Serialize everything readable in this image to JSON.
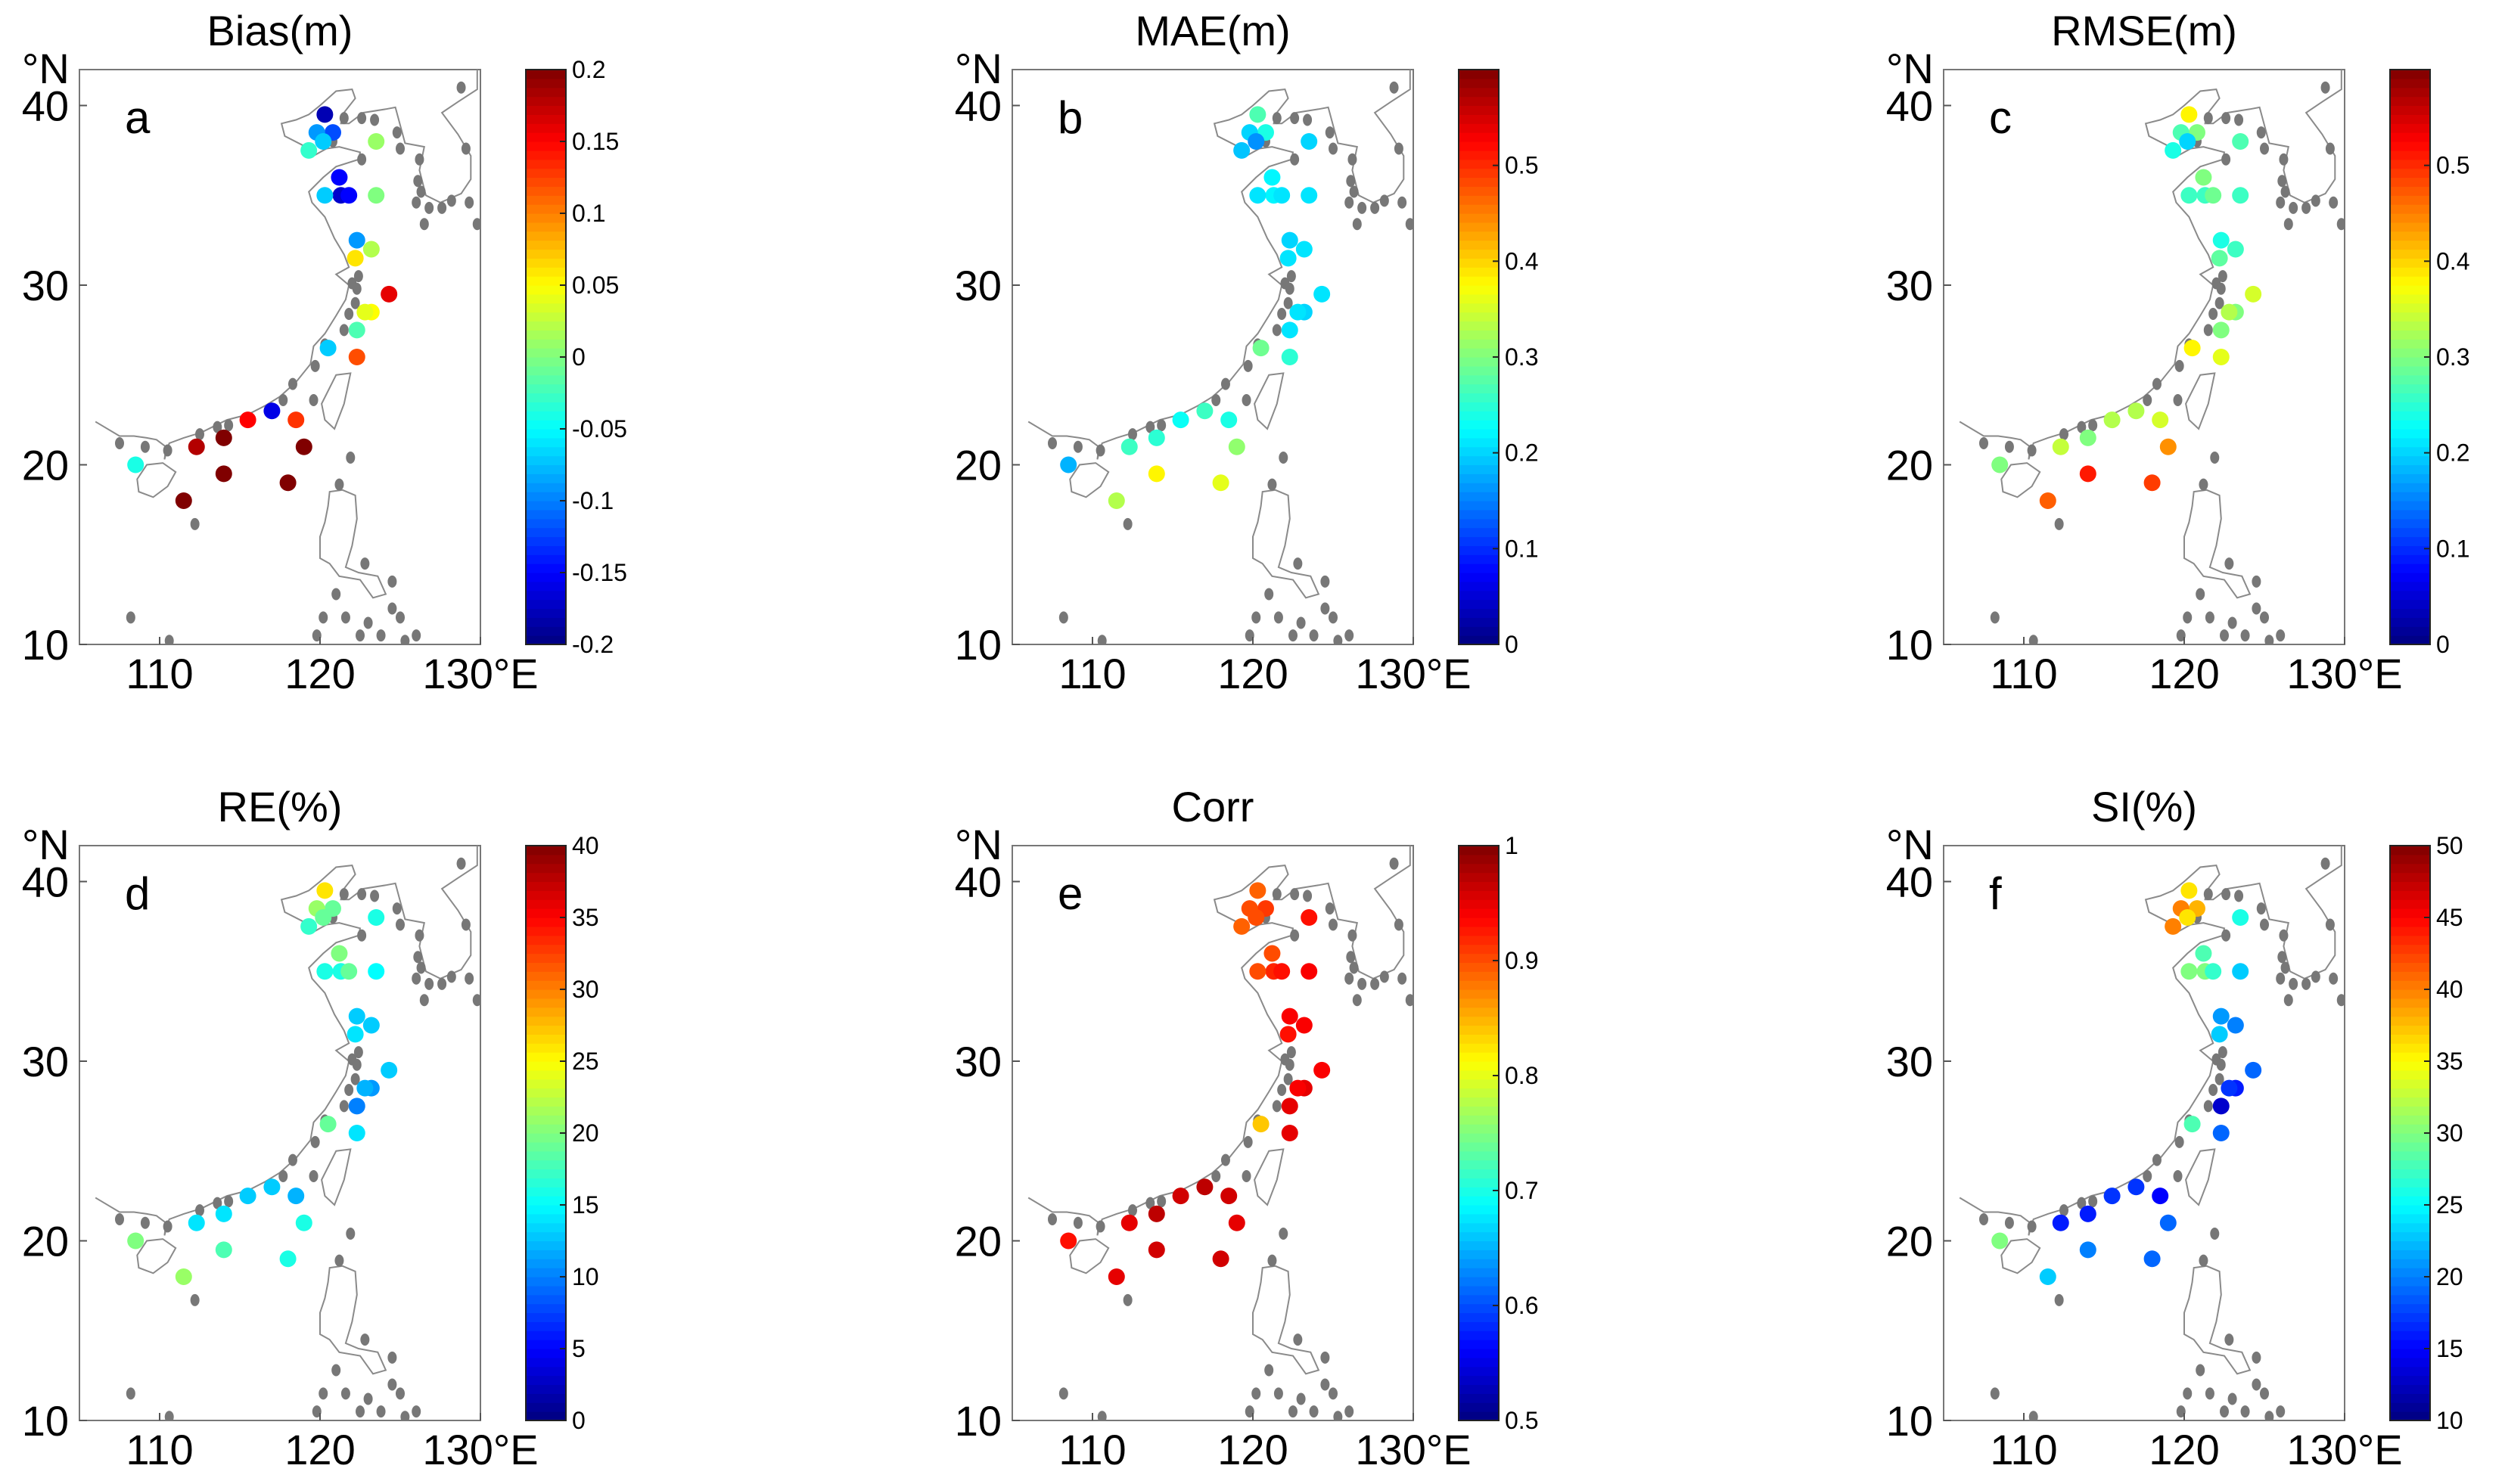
{
  "figure": {
    "lat_unit_label": "°N",
    "lon_unit_label": "°E"
  },
  "chart_data": [
    {
      "type": "scatter",
      "panel": "a",
      "title": "Bias(m)",
      "xlim": [
        105,
        130
      ],
      "ylim": [
        10,
        42
      ],
      "x_ticks": [
        110,
        120,
        130
      ],
      "y_ticks": [
        10,
        20,
        30,
        40
      ],
      "colorbar": {
        "min": -0.2,
        "max": 0.2,
        "ticks": [
          "0.2",
          "0.15",
          "0.1",
          "0.05",
          "0",
          "-0.05",
          "-0.1",
          "-0.15",
          "-0.2"
        ]
      },
      "x": [
        120.3,
        120.8,
        119.8,
        120.2,
        121.2,
        119.3,
        123.5,
        121.3,
        120.3,
        121.8,
        123.5,
        122.3,
        123.2,
        122.2,
        124.3,
        123.2,
        122.8,
        122.3,
        120.5,
        122.3,
        117.0,
        118.5,
        115.5,
        114.0,
        112.3,
        108.5,
        114.0,
        111.5,
        118.0,
        119.0
      ],
      "y": [
        39.5,
        38.5,
        38.5,
        38.0,
        36.0,
        37.5,
        38.0,
        35.0,
        35.0,
        35.0,
        35.0,
        32.5,
        32.0,
        31.5,
        29.5,
        28.5,
        28.5,
        27.5,
        26.5,
        26.0,
        23.0,
        22.5,
        22.5,
        21.5,
        21.0,
        20.0,
        19.5,
        18.0,
        19.0,
        21.0
      ],
      "values": [
        -0.18,
        -0.12,
        -0.09,
        -0.07,
        -0.15,
        -0.03,
        0.01,
        -0.17,
        -0.07,
        -0.15,
        -0.0,
        -0.09,
        0.02,
        0.06,
        0.16,
        0.05,
        0.04,
        -0.02,
        -0.07,
        0.12,
        -0.16,
        0.13,
        0.15,
        0.2,
        0.18,
        -0.04,
        0.2,
        0.2,
        0.2,
        0.2
      ]
    },
    {
      "type": "scatter",
      "panel": "b",
      "title": "MAE(m)",
      "xlim": [
        105,
        130
      ],
      "ylim": [
        10,
        42
      ],
      "x_ticks": [
        110,
        120,
        130
      ],
      "y_ticks": [
        10,
        20,
        30,
        40
      ],
      "colorbar": {
        "min": 0,
        "max": 0.6,
        "ticks": [
          "0.5",
          "0.4",
          "0.3",
          "0.2",
          "0.1",
          "0"
        ]
      },
      "x": [
        120.3,
        120.8,
        119.8,
        120.2,
        121.2,
        119.3,
        123.5,
        121.3,
        120.3,
        121.8,
        123.5,
        122.3,
        123.2,
        122.2,
        124.3,
        123.2,
        122.8,
        122.3,
        120.5,
        122.3,
        117.0,
        118.5,
        115.5,
        114.0,
        112.3,
        108.5,
        114.0,
        111.5,
        118.0,
        119.0
      ],
      "y": [
        39.5,
        38.5,
        38.5,
        38.0,
        36.0,
        37.5,
        38.0,
        35.0,
        35.0,
        35.0,
        35.0,
        32.5,
        32.0,
        31.5,
        29.5,
        28.5,
        28.5,
        27.5,
        26.5,
        26.0,
        23.0,
        22.5,
        22.5,
        21.5,
        21.0,
        20.0,
        19.5,
        18.0,
        19.0,
        21.0
      ],
      "values": [
        0.27,
        0.24,
        0.2,
        0.16,
        0.22,
        0.19,
        0.2,
        0.22,
        0.21,
        0.21,
        0.21,
        0.2,
        0.21,
        0.21,
        0.21,
        0.2,
        0.21,
        0.21,
        0.29,
        0.25,
        0.26,
        0.24,
        0.23,
        0.25,
        0.26,
        0.18,
        0.38,
        0.33,
        0.36,
        0.31
      ]
    },
    {
      "type": "scatter",
      "panel": "c",
      "title": "RMSE(m)",
      "xlim": [
        105,
        130
      ],
      "ylim": [
        10,
        42
      ],
      "x_ticks": [
        110,
        120,
        130
      ],
      "y_ticks": [
        10,
        20,
        30,
        40
      ],
      "colorbar": {
        "min": 0,
        "max": 0.6,
        "ticks": [
          "0.5",
          "0.4",
          "0.3",
          "0.2",
          "0.1",
          "0"
        ]
      },
      "x": [
        120.3,
        120.8,
        119.8,
        120.2,
        121.2,
        119.3,
        123.5,
        121.3,
        120.3,
        121.8,
        123.5,
        122.3,
        123.2,
        122.2,
        124.3,
        123.2,
        122.8,
        122.3,
        120.5,
        122.3,
        117.0,
        118.5,
        115.5,
        114.0,
        112.3,
        108.5,
        114.0,
        111.5,
        118.0,
        119.0
      ],
      "y": [
        39.5,
        38.5,
        38.5,
        38.0,
        36.0,
        37.5,
        38.0,
        35.0,
        35.0,
        35.0,
        35.0,
        32.5,
        32.0,
        31.5,
        29.5,
        28.5,
        28.5,
        27.5,
        26.5,
        26.0,
        23.0,
        22.5,
        22.5,
        21.5,
        21.0,
        20.0,
        19.5,
        18.0,
        19.0,
        21.0
      ],
      "values": [
        0.38,
        0.3,
        0.27,
        0.2,
        0.3,
        0.24,
        0.27,
        0.26,
        0.26,
        0.29,
        0.26,
        0.24,
        0.26,
        0.28,
        0.35,
        0.3,
        0.33,
        0.3,
        0.38,
        0.36,
        0.33,
        0.35,
        0.33,
        0.3,
        0.34,
        0.3,
        0.51,
        0.47,
        0.49,
        0.44
      ]
    },
    {
      "type": "scatter",
      "panel": "d",
      "title": "RE(%)",
      "xlim": [
        105,
        130
      ],
      "ylim": [
        10,
        42
      ],
      "x_ticks": [
        110,
        120,
        130
      ],
      "y_ticks": [
        10,
        20,
        30,
        40
      ],
      "colorbar": {
        "min": 0,
        "max": 40,
        "ticks": [
          "40",
          "35",
          "30",
          "25",
          "20",
          "15",
          "10",
          "5",
          "0"
        ]
      },
      "x": [
        120.3,
        120.8,
        119.8,
        120.2,
        121.2,
        119.3,
        123.5,
        121.3,
        120.3,
        121.8,
        123.5,
        122.3,
        123.2,
        122.2,
        124.3,
        123.2,
        122.8,
        122.3,
        120.5,
        122.3,
        117.0,
        118.5,
        115.5,
        114.0,
        112.3,
        108.5,
        114.0,
        111.5,
        118.0,
        119.0
      ],
      "y": [
        39.5,
        38.5,
        38.5,
        38.0,
        36.0,
        37.5,
        38.0,
        35.0,
        35.0,
        35.0,
        35.0,
        32.5,
        32.0,
        31.5,
        29.5,
        28.5,
        28.5,
        27.5,
        26.5,
        26.0,
        23.0,
        22.5,
        22.5,
        21.5,
        21.0,
        20.0,
        19.5,
        18.0,
        19.0,
        21.0
      ],
      "values": [
        26,
        19,
        21,
        19,
        20,
        17,
        16,
        16,
        16,
        19,
        15,
        13,
        13,
        14,
        13,
        11,
        12,
        10,
        19,
        14,
        13,
        12,
        13,
        14,
        14,
        20,
        18,
        21,
        16,
        16
      ]
    },
    {
      "type": "scatter",
      "panel": "e",
      "title": "Corr",
      "xlim": [
        105,
        130
      ],
      "ylim": [
        10,
        42
      ],
      "x_ticks": [
        110,
        120,
        130
      ],
      "y_ticks": [
        10,
        20,
        30,
        40
      ],
      "colorbar": {
        "min": 0.5,
        "max": 1,
        "ticks": [
          "1",
          "0.9",
          "0.8",
          "0.7",
          "0.6",
          "0.5"
        ]
      },
      "x": [
        120.3,
        120.8,
        119.8,
        120.2,
        121.2,
        119.3,
        123.5,
        121.3,
        120.3,
        121.8,
        123.5,
        122.3,
        123.2,
        122.2,
        124.3,
        123.2,
        122.8,
        122.3,
        120.5,
        122.3,
        117.0,
        118.5,
        115.5,
        114.0,
        112.3,
        108.5,
        114.0,
        111.5,
        118.0,
        119.0
      ],
      "y": [
        39.5,
        38.5,
        38.5,
        38.0,
        36.0,
        37.5,
        38.0,
        35.0,
        35.0,
        35.0,
        35.0,
        32.5,
        32.0,
        31.5,
        29.5,
        28.5,
        28.5,
        27.5,
        26.5,
        26.0,
        23.0,
        22.5,
        22.5,
        21.5,
        21.0,
        20.0,
        19.5,
        18.0,
        19.0,
        21.0
      ],
      "values": [
        0.89,
        0.91,
        0.9,
        0.9,
        0.9,
        0.89,
        0.93,
        0.92,
        0.9,
        0.93,
        0.94,
        0.94,
        0.94,
        0.93,
        0.94,
        0.95,
        0.94,
        0.95,
        0.84,
        0.95,
        0.97,
        0.96,
        0.96,
        0.97,
        0.95,
        0.93,
        0.96,
        0.95,
        0.96,
        0.95
      ]
    },
    {
      "type": "scatter",
      "panel": "f",
      "title": "SI(%)",
      "xlim": [
        105,
        130
      ],
      "ylim": [
        10,
        42
      ],
      "x_ticks": [
        110,
        120,
        130
      ],
      "y_ticks": [
        10,
        20,
        30,
        40
      ],
      "colorbar": {
        "min": 10,
        "max": 50,
        "ticks": [
          "50",
          "45",
          "40",
          "35",
          "30",
          "25",
          "20",
          "15",
          "10"
        ]
      },
      "x": [
        120.3,
        120.8,
        119.8,
        120.2,
        121.2,
        119.3,
        123.5,
        121.3,
        120.3,
        121.8,
        123.5,
        122.3,
        123.2,
        122.2,
        124.3,
        123.2,
        122.8,
        122.3,
        120.5,
        122.3,
        117.0,
        118.5,
        115.5,
        114.0,
        112.3,
        108.5,
        114.0,
        111.5,
        118.0,
        119.0
      ],
      "y": [
        39.5,
        38.5,
        38.5,
        38.0,
        36.0,
        37.5,
        38.0,
        35.0,
        35.0,
        35.0,
        35.0,
        32.5,
        32.0,
        31.5,
        29.5,
        28.5,
        28.5,
        27.5,
        26.5,
        26.0,
        23.0,
        22.5,
        22.5,
        21.5,
        21.0,
        20.0,
        19.5,
        18.0,
        19.0,
        21.0
      ],
      "values": [
        36,
        38,
        40,
        36,
        28,
        40,
        26,
        30,
        30,
        27,
        23,
        21,
        20,
        23,
        19,
        16,
        17,
        13,
        28,
        19,
        17,
        15,
        17,
        16,
        16,
        30,
        20,
        23,
        19,
        19
      ]
    }
  ]
}
